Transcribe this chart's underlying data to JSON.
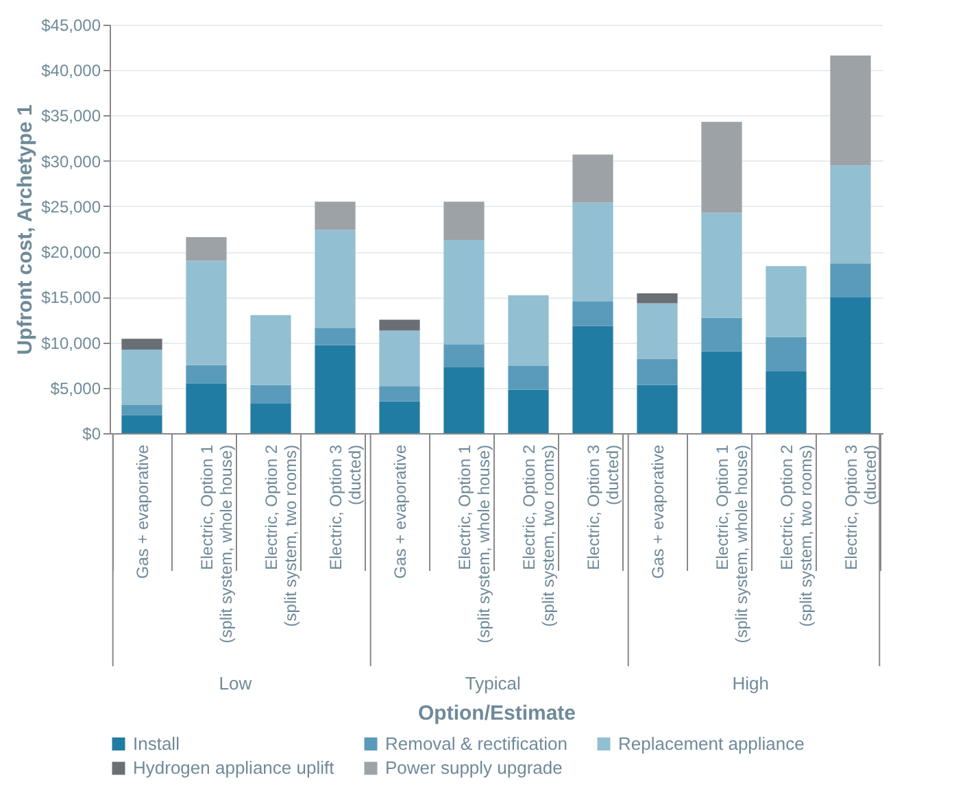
{
  "chart_data": {
    "type": "bar",
    "stacked": true,
    "xlabel": "Option/Estimate",
    "ylabel": "Upfront cost, Archetype 1",
    "categories": [
      "Gas + evaporative",
      "Electric, Option 1\n(split system, whole house)",
      "Electric, Option 2\n(split system, two rooms)",
      "Electric, Option 3\n(ducted)",
      "Gas + evaporative",
      "Electric, Option 1\n(split system, whole house)",
      "Electric, Option 2\n(split system, two rooms)",
      "Electric, Option 3\n(ducted)",
      "Gas + evaporative",
      "Electric, Option 1\n(split system, whole house)",
      "Electric, Option 2\n(split system, two rooms)",
      "Electric, Option 3\n(ducted)"
    ],
    "annotations": [
      "Low",
      "Typical",
      "High"
    ],
    "series": [
      {
        "name": "Install",
        "color": "#217ca3",
        "values": [
          2000,
          5500,
          3300,
          9700,
          3500,
          7300,
          4800,
          11800,
          5300,
          9000,
          6800,
          15000
        ]
      },
      {
        "name": "Removal & rectification",
        "color": "#5a9bbb",
        "values": [
          1100,
          2000,
          2000,
          1900,
          1700,
          2500,
          2600,
          2700,
          2900,
          3700,
          3800,
          3700
        ]
      },
      {
        "name": "Replacement appliance",
        "color": "#92bfd1",
        "values": [
          6100,
          11500,
          7700,
          10800,
          6100,
          11500,
          7800,
          10900,
          6100,
          11600,
          7800,
          10800
        ]
      },
      {
        "name": "Hydrogen appliance uplift",
        "color": "#6a6f75",
        "values": [
          1200,
          null,
          null,
          null,
          1200,
          null,
          null,
          null,
          1100,
          null,
          null,
          null
        ]
      },
      {
        "name": "Power supply upgrade",
        "color": "#9da2a6",
        "values": [
          null,
          2600,
          null,
          3100,
          null,
          4200,
          null,
          5300,
          null,
          10000,
          null,
          12100
        ]
      }
    ],
    "ylim": [
      0,
      45000
    ],
    "yticks": [
      {
        "value": 0,
        "label": "$0"
      },
      {
        "value": 5000,
        "label": "$5,000"
      },
      {
        "value": 10000,
        "label": "$10,000"
      },
      {
        "value": 15000,
        "label": "$15,000"
      },
      {
        "value": 20000,
        "label": "$20,000"
      },
      {
        "value": 25000,
        "label": "$25,000"
      },
      {
        "value": 30000,
        "label": "$30,000"
      },
      {
        "value": 35000,
        "label": "$35,000"
      },
      {
        "value": 40000,
        "label": "$40,000"
      },
      {
        "value": 45000,
        "label": "$45,000"
      }
    ],
    "grid": "y",
    "legend": "bottom"
  }
}
